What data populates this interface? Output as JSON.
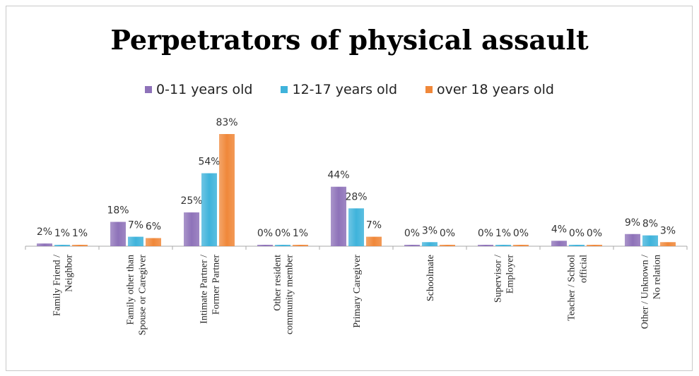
{
  "chart_data": {
    "type": "bar",
    "title": "Perpetrators of physical assault",
    "categories": [
      [
        "Family Friend /",
        "Neighbor"
      ],
      [
        "Family other than",
        "Spouse or Caregiver"
      ],
      [
        "Intimate Partner /",
        "Former Partner"
      ],
      [
        "Other resident",
        "community member"
      ],
      [
        "Primary Caregiver"
      ],
      [
        "Schoolmate"
      ],
      [
        "Supervisor /",
        "Employer"
      ],
      [
        "Teacher / School",
        "official"
      ],
      [
        "Other / Unknown /",
        "No relation"
      ]
    ],
    "series": [
      {
        "name": "0-11 years old",
        "color": "#8e72b9",
        "values": [
          2,
          18,
          25,
          0,
          44,
          0,
          0,
          4,
          9
        ]
      },
      {
        "name": "12-17 years old",
        "color": "#3fb3db",
        "values": [
          1,
          7,
          54,
          0,
          28,
          3,
          1,
          0,
          8
        ]
      },
      {
        "name": "over 18 years old",
        "color": "#f0883a",
        "values": [
          1,
          6,
          83,
          1,
          7,
          0,
          0,
          0,
          3
        ]
      }
    ],
    "value_suffix": "%",
    "legend_position": "top",
    "grid": false
  }
}
